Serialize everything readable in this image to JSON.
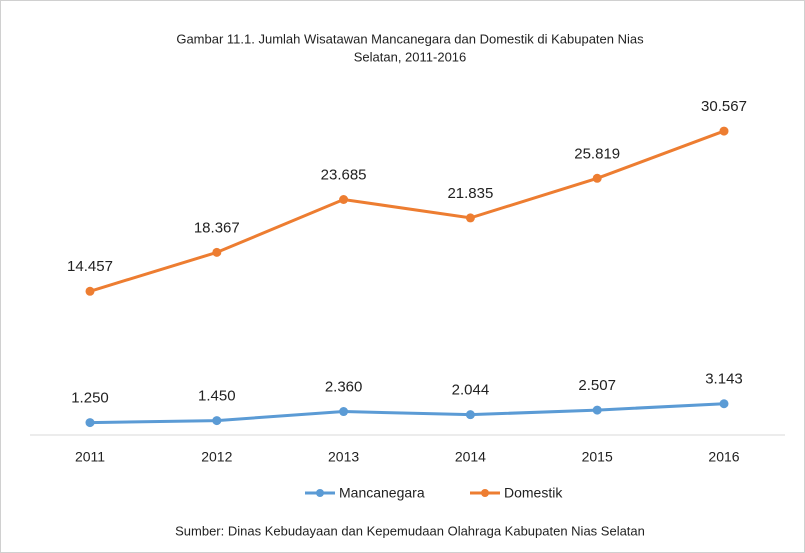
{
  "chart_data": {
    "type": "line",
    "title": [
      "Gambar 11.1. Jumlah Wisatawan Mancanegara dan Domestik di Kabupaten Nias",
      "Selatan, 2011-2016"
    ],
    "categories": [
      "2011",
      "2012",
      "2013",
      "2014",
      "2015",
      "2016"
    ],
    "series": [
      {
        "name": "Mancanegara",
        "color": "#5b9bd5",
        "values": [
          1250,
          1450,
          2360,
          2044,
          2507,
          3143
        ],
        "value_labels": [
          "1.250",
          "1.450",
          "2.360",
          "2.044",
          "2.507",
          "3.143"
        ]
      },
      {
        "name": "Domestik",
        "color": "#ed7d31",
        "values": [
          14457,
          18367,
          23685,
          21835,
          25819,
          30567
        ],
        "value_labels": [
          "14.457",
          "18.367",
          "23.685",
          "21.835",
          "25.819",
          "30.567"
        ]
      }
    ],
    "ylim": [
      0,
      35000
    ],
    "legend": "bottom",
    "source": "Sumber: Dinas Kebudayaan dan Kepemudaan Olahraga Kabupaten Nias Selatan"
  }
}
